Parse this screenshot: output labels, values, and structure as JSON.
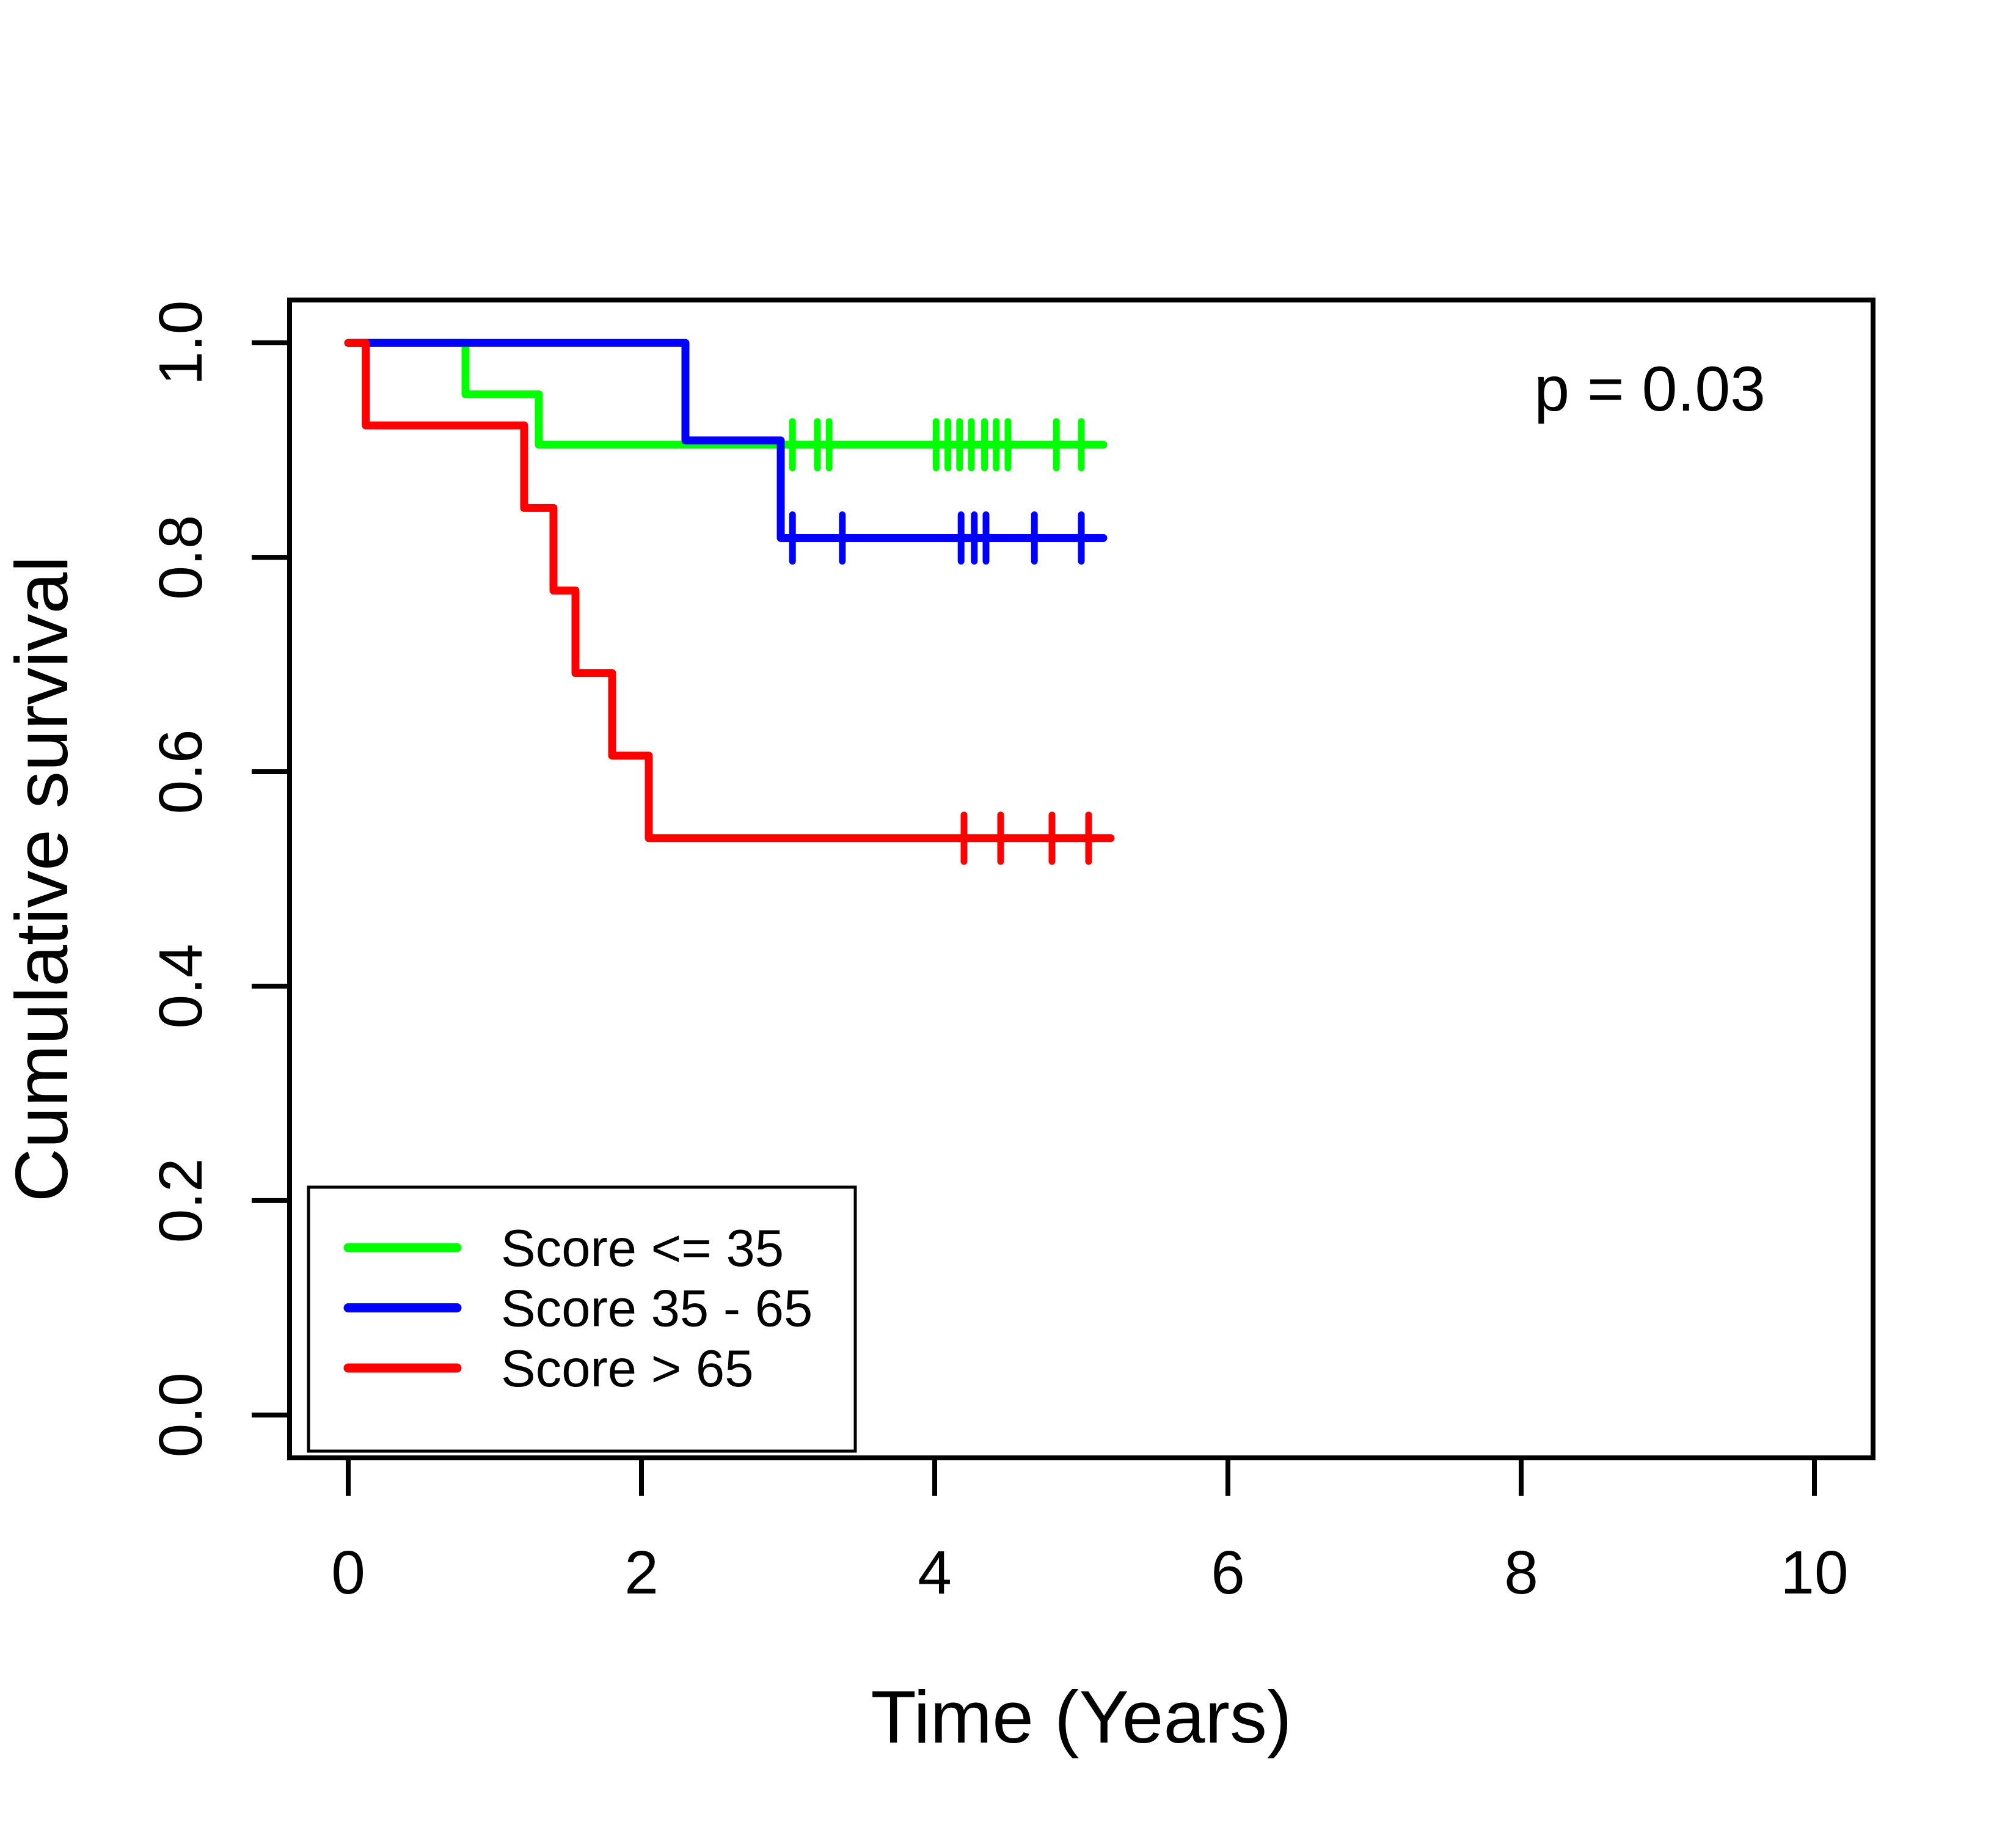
{
  "figure": {
    "background_color": "#ffffff",
    "axis_color": "#000000",
    "kind": "kaplan-meier-survival-plot"
  },
  "chart_data": {
    "type": "line",
    "subtype": "kaplan-meier-step",
    "title": "",
    "xlabel": "Time (Years)",
    "ylabel": "Cumulative survival",
    "xlim": [
      -0.4,
      10.4
    ],
    "ylim": [
      -0.04,
      1.04
    ],
    "x_ticks": [
      0,
      2,
      4,
      6,
      8,
      10
    ],
    "x_tick_labels": [
      "0",
      "2",
      "4",
      "6",
      "8",
      "10"
    ],
    "y_ticks": [
      0.0,
      0.2,
      0.4,
      0.6,
      0.8,
      1.0
    ],
    "y_tick_labels": [
      "0.0",
      "0.2",
      "0.4",
      "0.6",
      "0.8",
      "1.0"
    ],
    "grid": false,
    "annotation": {
      "text": "p = 0.03",
      "position": "top-right"
    },
    "legend": {
      "position": "bottom-left",
      "border": true,
      "background": "#ffffff"
    },
    "series": [
      {
        "name": "Score <= 35",
        "color": "#00ff00",
        "step_points": [
          [
            0,
            1.0
          ],
          [
            0.8,
            1.0
          ],
          [
            0.8,
            0.952
          ],
          [
            1.3,
            0.952
          ],
          [
            1.3,
            0.905
          ],
          [
            5.15,
            0.905
          ]
        ],
        "censor_times": [
          3.03,
          3.2,
          3.28,
          4.01,
          4.09,
          4.17,
          4.25,
          4.34,
          4.42,
          4.5,
          4.83,
          5.0
        ]
      },
      {
        "name": "Score 35 - 65",
        "color": "#0000ff",
        "step_points": [
          [
            0,
            1.0
          ],
          [
            2.3,
            1.0
          ],
          [
            2.3,
            0.909
          ],
          [
            2.95,
            0.909
          ],
          [
            2.95,
            0.818
          ],
          [
            5.15,
            0.818
          ]
        ],
        "censor_times": [
          3.03,
          3.37,
          4.18,
          4.27,
          4.35,
          4.68,
          5.0
        ]
      },
      {
        "name": "Score > 65",
        "color": "#ff0000",
        "step_points": [
          [
            0,
            1.0
          ],
          [
            0.12,
            1.0
          ],
          [
            0.12,
            0.923
          ],
          [
            1.2,
            0.923
          ],
          [
            1.2,
            0.846
          ],
          [
            1.4,
            0.846
          ],
          [
            1.4,
            0.769
          ],
          [
            1.55,
            0.769
          ],
          [
            1.55,
            0.692
          ],
          [
            1.8,
            0.692
          ],
          [
            1.8,
            0.615
          ],
          [
            2.05,
            0.615
          ],
          [
            2.05,
            0.538
          ],
          [
            5.2,
            0.538
          ]
        ],
        "censor_times": [
          4.2,
          4.45,
          4.8,
          5.05
        ]
      }
    ]
  }
}
